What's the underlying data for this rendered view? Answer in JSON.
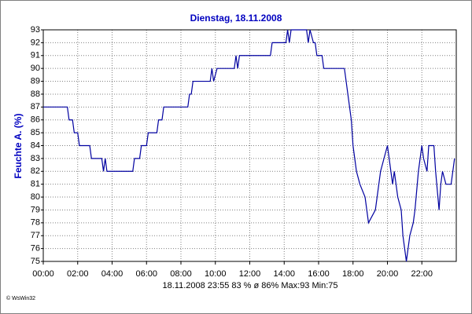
{
  "chart_data": {
    "type": "line",
    "title": "Dienstag, 18.11.2008",
    "y_label": "Feuchte A. (%)",
    "footer": "18.11.2008  23:55  83 %  ø 86%  Max:93  Min:75",
    "credit": "© WsWin32",
    "color": "#0000a0",
    "grid": true,
    "xlim": [
      0,
      24
    ],
    "ylim": [
      75,
      93
    ],
    "xticks": [
      {
        "value": 0,
        "label": "00:00"
      },
      {
        "value": 2,
        "label": "02:00"
      },
      {
        "value": 4,
        "label": "04:00"
      },
      {
        "value": 6,
        "label": "06:00"
      },
      {
        "value": 8,
        "label": "08:00"
      },
      {
        "value": 10,
        "label": "10:00"
      },
      {
        "value": 12,
        "label": "12:00"
      },
      {
        "value": 14,
        "label": "14:00"
      },
      {
        "value": 16,
        "label": "16:00"
      },
      {
        "value": 18,
        "label": "18:00"
      },
      {
        "value": 20,
        "label": "20:00"
      },
      {
        "value": 22,
        "label": "22:00"
      }
    ],
    "yticks": [
      75,
      76,
      77,
      78,
      79,
      80,
      81,
      82,
      83,
      84,
      85,
      86,
      87,
      88,
      89,
      90,
      91,
      92,
      93
    ],
    "x": [
      0,
      1.4,
      1.5,
      1.7,
      1.8,
      2.0,
      2.1,
      2.7,
      2.8,
      3.4,
      3.5,
      3.6,
      3.7,
      5.2,
      5.3,
      5.6,
      5.7,
      6.0,
      6.1,
      6.6,
      6.7,
      6.9,
      7.0,
      8.4,
      8.5,
      8.6,
      8.7,
      9.7,
      9.8,
      9.9,
      10.1,
      11.1,
      11.2,
      11.3,
      11.4,
      13.2,
      13.3,
      14.1,
      14.2,
      14.3,
      14.4,
      15.3,
      15.4,
      15.5,
      15.7,
      15.8,
      15.9,
      16.2,
      16.3,
      17.5,
      17.6,
      17.7,
      17.8,
      17.9,
      18.0,
      18.1,
      18.2,
      18.4,
      18.7,
      18.9,
      19.3,
      19.5,
      19.6,
      19.8,
      20.0,
      20.1,
      20.3,
      20.4,
      20.5,
      20.6,
      20.8,
      20.9,
      21.1,
      21.3,
      21.5,
      21.6,
      21.8,
      22.0,
      22.1,
      22.3,
      22.4,
      22.7,
      22.8,
      23.0,
      23.1,
      23.2,
      23.4,
      23.7,
      23.9
    ],
    "values": [
      87,
      87,
      86,
      86,
      85,
      85,
      84,
      84,
      83,
      83,
      82,
      83,
      82,
      82,
      83,
      83,
      84,
      84,
      85,
      85,
      86,
      86,
      87,
      87,
      88,
      88,
      89,
      89,
      90,
      89,
      90,
      90,
      91,
      90,
      91,
      91,
      92,
      92,
      93,
      92,
      93,
      93,
      92,
      93,
      92,
      92,
      91,
      91,
      90,
      90,
      89,
      88,
      87,
      86,
      84,
      83,
      82,
      81,
      80,
      78,
      79,
      81,
      82,
      83,
      84,
      83,
      81,
      82,
      81,
      80,
      79,
      77,
      75,
      77,
      78,
      79,
      82,
      84,
      83,
      82,
      84,
      84,
      82,
      79,
      81,
      82,
      81,
      81,
      83
    ]
  }
}
